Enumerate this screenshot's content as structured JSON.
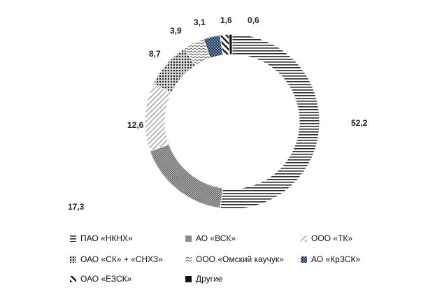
{
  "chart_data": {
    "type": "donut",
    "start_angle_deg": 0,
    "direction": "clockwise",
    "series": [
      {
        "name": "ПАО «НКНХ»",
        "value": 52.2,
        "label": "52,2",
        "pattern": "hlines"
      },
      {
        "name": "АО «ВСК»",
        "value": 17.3,
        "label": "17,3",
        "pattern": "dots-dense"
      },
      {
        "name": "ООО «ТК»",
        "value": 12.6,
        "label": "12,6",
        "pattern": "diag-light"
      },
      {
        "name": "ОАО «СК» + «СНХЗ»",
        "value": 8.7,
        "label": "8,7",
        "pattern": "grid-dots"
      },
      {
        "name": "ООО «Омский каучук»",
        "value": 3.9,
        "label": "3,9",
        "pattern": "zigzag"
      },
      {
        "name": "АО «КрЗСК»",
        "value": 3.1,
        "label": "3,1",
        "pattern": "checker-blue"
      },
      {
        "name": "ОАО «ЕЗСК»",
        "value": 1.6,
        "label": "1,6",
        "pattern": "diag-wide"
      },
      {
        "name": "Другие",
        "value": 0.6,
        "label": "0,6",
        "pattern": "solid"
      }
    ],
    "legend_position": "bottom"
  }
}
